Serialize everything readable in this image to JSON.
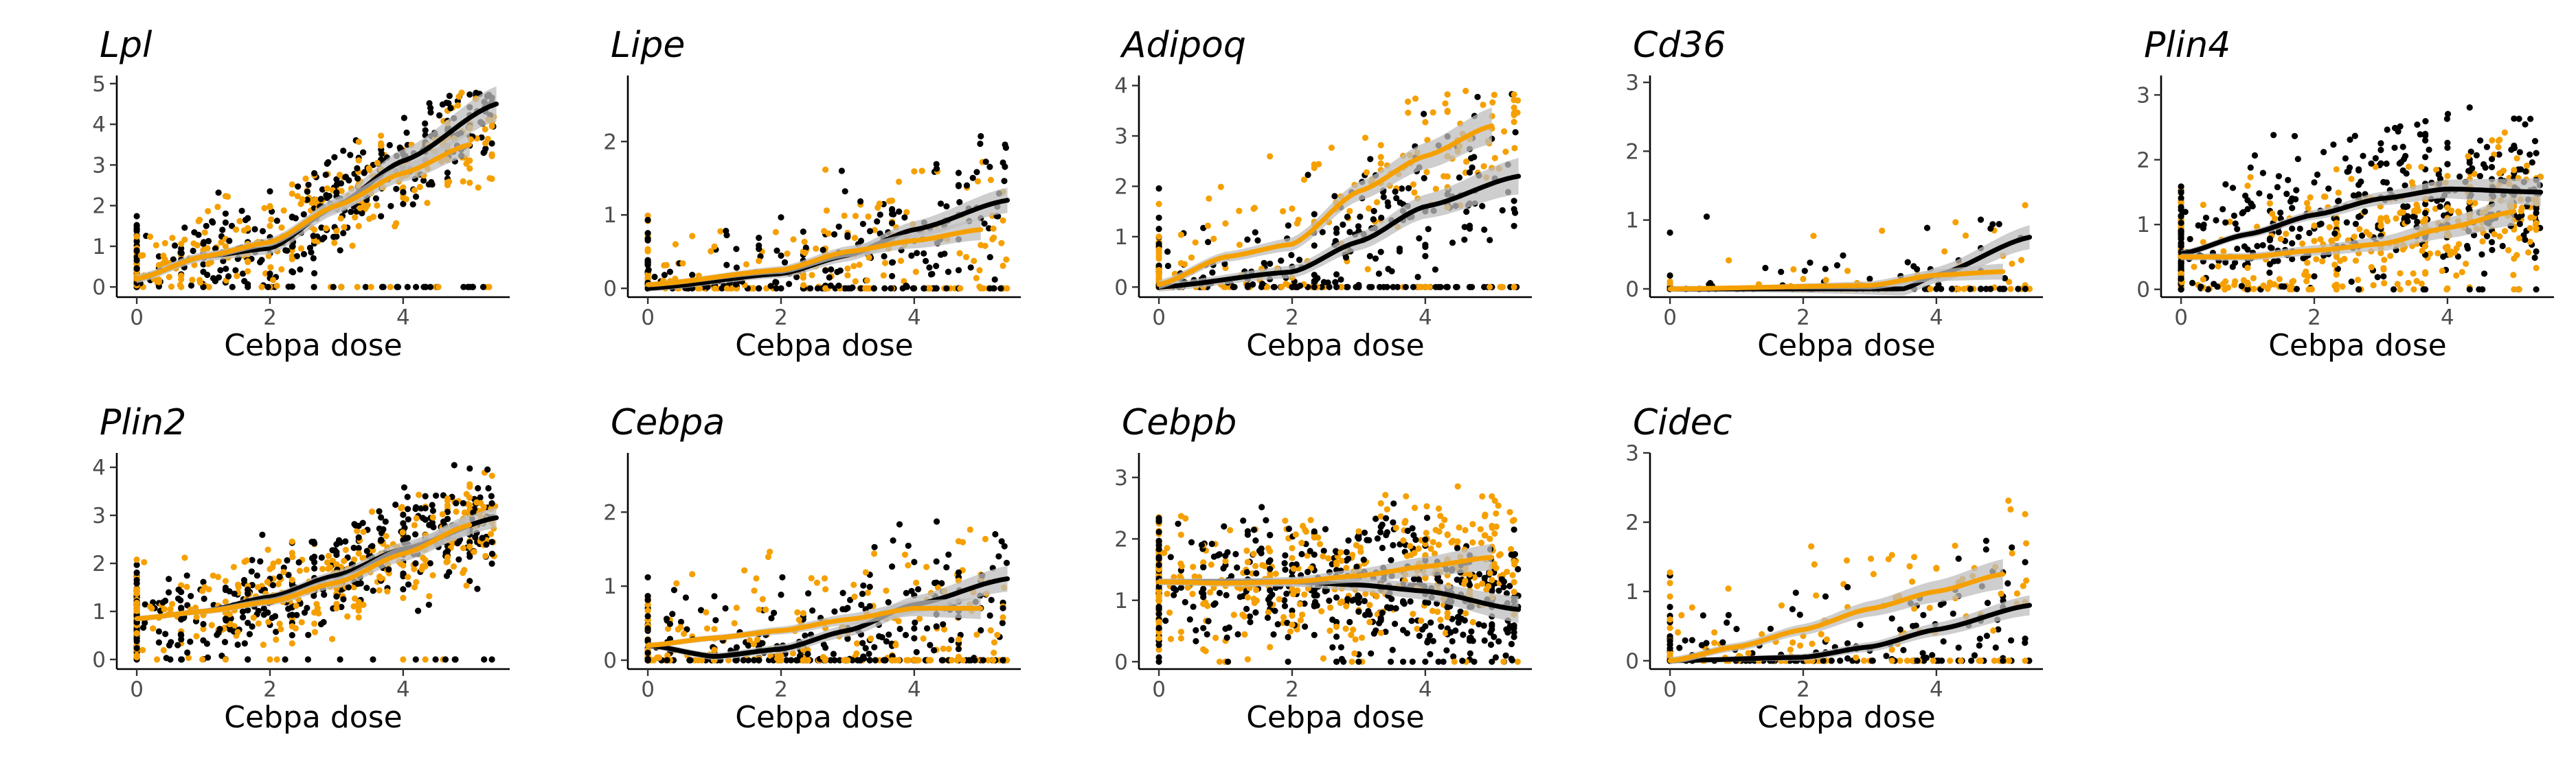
{
  "colors": {
    "black_series": "#000000",
    "orange_series": "#F5A000",
    "ribbon": "#BEBEBE"
  },
  "chart_data": [
    {
      "type": "scatter",
      "title": "Lpl",
      "xlabel": "Cebpa dose",
      "ylabel": "",
      "xlim": [
        -0.3,
        5.6
      ],
      "ylim": [
        -0.25,
        5.2
      ],
      "x_ticks": [
        0,
        2,
        4
      ],
      "y_ticks": [
        0,
        1,
        2,
        3,
        4,
        5
      ],
      "points": {
        "n": 700,
        "xmax": 5.4,
        "ymax": 4.8,
        "spread": 0.9,
        "zero_frac": 0.05
      },
      "series": [
        {
          "color": "black",
          "smooth": [
            [
              0,
              0.2
            ],
            [
              1,
              0.75
            ],
            [
              2,
              0.95
            ],
            [
              3,
              2.0
            ],
            [
              4,
              3.1
            ],
            [
              5.4,
              4.5
            ]
          ],
          "band": 0.3
        },
        {
          "color": "orange",
          "smooth": [
            [
              0,
              0.2
            ],
            [
              1,
              0.75
            ],
            [
              2,
              1.1
            ],
            [
              3,
              2.0
            ],
            [
              4,
              2.8
            ],
            [
              5.0,
              3.5
            ]
          ],
          "band": 0.2
        }
      ]
    },
    {
      "type": "scatter",
      "title": "Lipe",
      "xlabel": "Cebpa dose",
      "ylabel": "",
      "xlim": [
        -0.3,
        5.6
      ],
      "ylim": [
        -0.12,
        2.9
      ],
      "x_ticks": [
        0,
        2,
        4
      ],
      "y_ticks": [
        0,
        1,
        2
      ],
      "points": {
        "n": 450,
        "xmax": 5.4,
        "ymax": 2.8,
        "spread": 0.7,
        "zero_frac": 0.3
      },
      "series": [
        {
          "color": "black",
          "smooth": [
            [
              0,
              0.0
            ],
            [
              2,
              0.2
            ],
            [
              3,
              0.45
            ],
            [
              4,
              0.8
            ],
            [
              5.4,
              1.2
            ]
          ],
          "band": 0.12
        },
        {
          "color": "orange",
          "smooth": [
            [
              0,
              0.05
            ],
            [
              2,
              0.25
            ],
            [
              3,
              0.5
            ],
            [
              4,
              0.65
            ],
            [
              5.0,
              0.8
            ]
          ],
          "band": 0.1
        }
      ]
    },
    {
      "type": "scatter",
      "title": "Adipoq",
      "xlabel": "Cebpa dose",
      "ylabel": "",
      "xlim": [
        -0.3,
        5.6
      ],
      "ylim": [
        -0.2,
        4.2
      ],
      "x_ticks": [
        0,
        2,
        4
      ],
      "y_ticks": [
        0,
        1,
        2,
        3,
        4
      ],
      "points": {
        "n": 500,
        "xmax": 5.4,
        "ymax": 3.9,
        "spread": 1.1,
        "zero_frac": 0.25
      },
      "series": [
        {
          "color": "black",
          "smooth": [
            [
              0,
              0.0
            ],
            [
              2,
              0.3
            ],
            [
              3,
              0.9
            ],
            [
              4,
              1.6
            ],
            [
              5.4,
              2.2
            ]
          ],
          "band": 0.25
        },
        {
          "color": "orange",
          "smooth": [
            [
              0,
              0.05
            ],
            [
              1,
              0.6
            ],
            [
              2,
              0.85
            ],
            [
              3,
              1.9
            ],
            [
              4,
              2.6
            ],
            [
              5.0,
              3.2
            ]
          ],
          "band": 0.25
        }
      ]
    },
    {
      "type": "scatter",
      "title": "Cd36",
      "xlabel": "Cebpa dose",
      "ylabel": "",
      "xlim": [
        -0.3,
        5.6
      ],
      "ylim": [
        -0.12,
        3.1
      ],
      "x_ticks": [
        0,
        2,
        4
      ],
      "y_ticks": [
        0,
        1,
        2,
        3
      ],
      "points": {
        "n": 150,
        "xmax": 5.4,
        "ymax": 2.9,
        "spread": 0.6,
        "zero_frac": 0.55
      },
      "series": [
        {
          "color": "black",
          "smooth": [
            [
              0,
              0.0
            ],
            [
              3.5,
              0.0
            ],
            [
              4,
              0.2
            ],
            [
              5.4,
              0.75
            ]
          ],
          "band": 0.12
        },
        {
          "color": "orange",
          "smooth": [
            [
              0,
              0.0
            ],
            [
              3,
              0.05
            ],
            [
              4,
              0.2
            ],
            [
              5.0,
              0.25
            ]
          ],
          "band": 0.08
        }
      ]
    },
    {
      "type": "scatter",
      "title": "Plin4",
      "xlabel": "Cebpa dose",
      "ylabel": "",
      "xlim": [
        -0.3,
        5.6
      ],
      "ylim": [
        -0.12,
        3.3
      ],
      "x_ticks": [
        0,
        2,
        4
      ],
      "y_ticks": [
        0,
        1,
        2,
        3
      ],
      "points": {
        "n": 800,
        "xmax": 5.4,
        "ymax": 3.2,
        "spread": 0.8,
        "zero_frac": 0.05
      },
      "series": [
        {
          "color": "black",
          "smooth": [
            [
              0,
              0.55
            ],
            [
              1,
              0.85
            ],
            [
              2,
              1.15
            ],
            [
              3,
              1.4
            ],
            [
              4,
              1.55
            ],
            [
              5.4,
              1.5
            ]
          ],
          "band": 0.15
        },
        {
          "color": "orange",
          "smooth": [
            [
              0,
              0.5
            ],
            [
              1,
              0.5
            ],
            [
              2,
              0.6
            ],
            [
              3,
              0.7
            ],
            [
              4,
              0.95
            ],
            [
              5.0,
              1.2
            ]
          ],
          "band": 0.15
        }
      ]
    },
    {
      "type": "scatter",
      "title": "Plin2",
      "xlabel": "Cebpa dose",
      "ylabel": "",
      "xlim": [
        -0.3,
        5.6
      ],
      "ylim": [
        -0.2,
        4.3
      ],
      "x_ticks": [
        0,
        2,
        4
      ],
      "y_ticks": [
        0,
        1,
        2,
        3,
        4
      ],
      "points": {
        "n": 800,
        "xmax": 5.4,
        "ymax": 4.2,
        "spread": 0.8,
        "zero_frac": 0.03
      },
      "series": [
        {
          "color": "black",
          "smooth": [
            [
              0,
              0.85
            ],
            [
              1,
              1.0
            ],
            [
              2,
              1.3
            ],
            [
              3,
              1.75
            ],
            [
              4,
              2.3
            ],
            [
              5.4,
              2.95
            ]
          ],
          "band": 0.15
        },
        {
          "color": "orange",
          "smooth": [
            [
              0,
              0.85
            ],
            [
              1,
              1.0
            ],
            [
              2,
              1.2
            ],
            [
              3,
              1.6
            ],
            [
              4,
              2.2
            ],
            [
              5.0,
              2.8
            ]
          ],
          "band": 0.15
        }
      ]
    },
    {
      "type": "scatter",
      "title": "Cebpa",
      "xlabel": "Cebpa dose",
      "ylabel": "",
      "xlim": [
        -0.3,
        5.6
      ],
      "ylim": [
        -0.12,
        2.8
      ],
      "x_ticks": [
        0,
        2,
        4
      ],
      "y_ticks": [
        0,
        1,
        2
      ],
      "points": {
        "n": 500,
        "xmax": 5.4,
        "ymax": 2.7,
        "spread": 0.7,
        "zero_frac": 0.3
      },
      "series": [
        {
          "color": "black",
          "smooth": [
            [
              0,
              0.2
            ],
            [
              1,
              0.05
            ],
            [
              2,
              0.15
            ],
            [
              3,
              0.4
            ],
            [
              4,
              0.75
            ],
            [
              5.4,
              1.1
            ]
          ],
          "band": 0.12
        },
        {
          "color": "orange",
          "smooth": [
            [
              0,
              0.2
            ],
            [
              1,
              0.3
            ],
            [
              2,
              0.4
            ],
            [
              3,
              0.55
            ],
            [
              4,
              0.7
            ],
            [
              5.0,
              0.7
            ]
          ],
          "band": 0.1
        }
      ]
    },
    {
      "type": "scatter",
      "title": "Cebpb",
      "xlabel": "Cebpa dose",
      "ylabel": "",
      "xlim": [
        -0.3,
        5.6
      ],
      "ylim": [
        -0.12,
        3.4
      ],
      "x_ticks": [
        0,
        2,
        4
      ],
      "y_ticks": [
        0,
        1,
        2,
        3
      ],
      "points": {
        "n": 900,
        "xmax": 5.4,
        "ymax": 3.2,
        "spread": 0.8,
        "zero_frac": 0.04
      },
      "series": [
        {
          "color": "black",
          "smooth": [
            [
              0,
              1.3
            ],
            [
              1,
              1.3
            ],
            [
              2,
              1.3
            ],
            [
              3,
              1.25
            ],
            [
              4,
              1.15
            ],
            [
              5.4,
              0.85
            ]
          ],
          "band": 0.15
        },
        {
          "color": "orange",
          "smooth": [
            [
              0,
              1.3
            ],
            [
              1,
              1.28
            ],
            [
              2,
              1.3
            ],
            [
              3,
              1.4
            ],
            [
              4,
              1.55
            ],
            [
              5.0,
              1.7
            ]
          ],
          "band": 0.15
        }
      ]
    },
    {
      "type": "scatter",
      "title": "Cidec",
      "xlabel": "Cebpa dose",
      "ylabel": "",
      "xlim": [
        -0.3,
        5.6
      ],
      "ylim": [
        -0.12,
        3.0
      ],
      "x_ticks": [
        0,
        2,
        4
      ],
      "y_ticks": [
        0,
        1,
        2,
        3
      ],
      "points": {
        "n": 300,
        "xmax": 5.4,
        "ymax": 2.8,
        "spread": 0.8,
        "zero_frac": 0.3
      },
      "series": [
        {
          "color": "black",
          "smooth": [
            [
              0,
              0.0
            ],
            [
              2,
              0.05
            ],
            [
              3,
              0.2
            ],
            [
              4,
              0.45
            ],
            [
              5.4,
              0.8
            ]
          ],
          "band": 0.1
        },
        {
          "color": "orange",
          "smooth": [
            [
              0,
              0.0
            ],
            [
              1,
              0.2
            ],
            [
              2,
              0.45
            ],
            [
              3,
              0.75
            ],
            [
              4,
              1.0
            ],
            [
              5.0,
              1.25
            ]
          ],
          "band": 0.15
        }
      ]
    }
  ]
}
